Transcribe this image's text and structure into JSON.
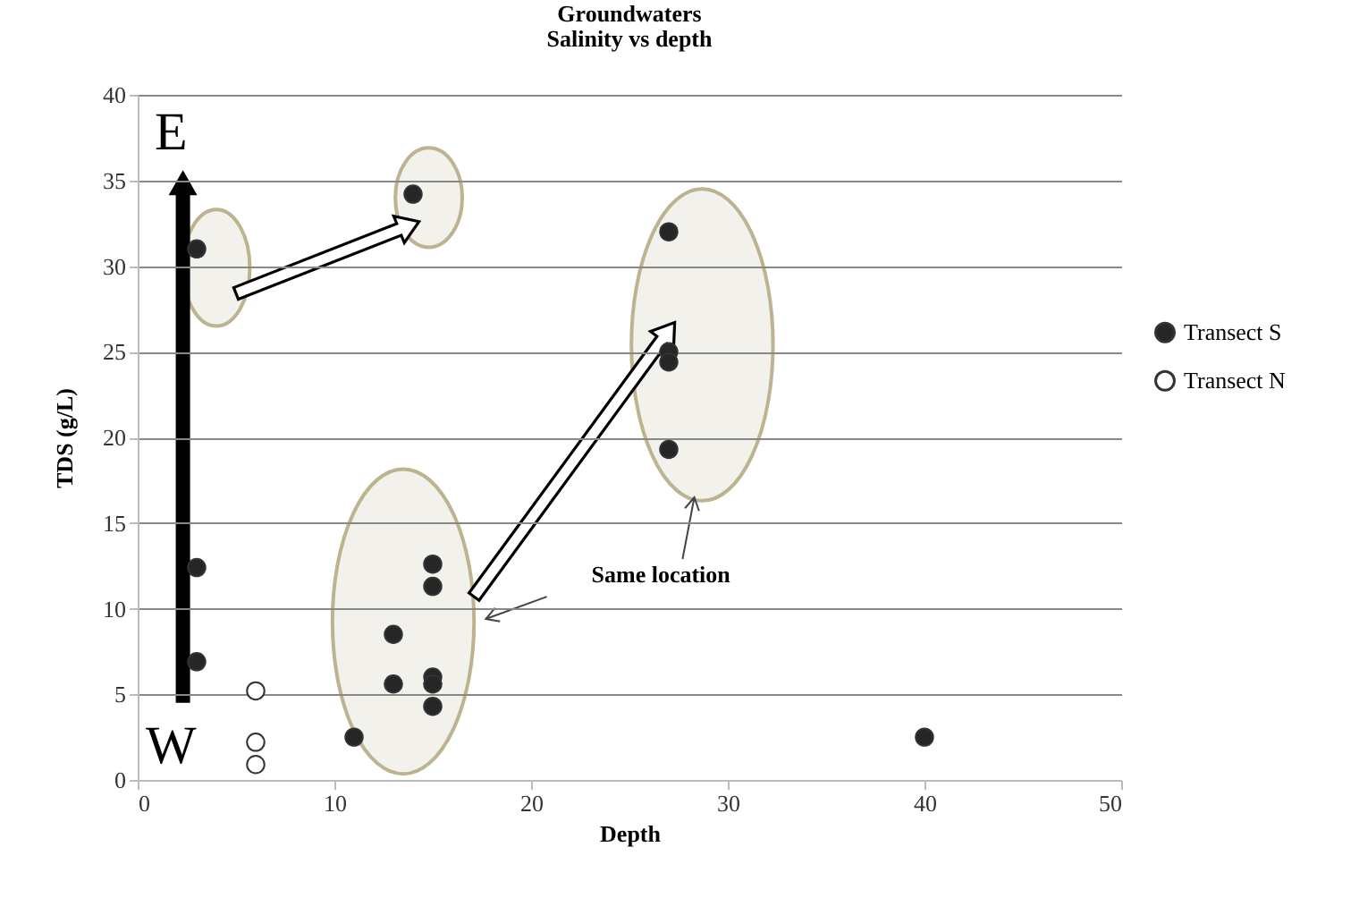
{
  "chart_data": {
    "type": "scatter",
    "title": "Groundwaters",
    "subtitle": "Salinity vs depth",
    "xlabel": "Depth",
    "ylabel": "TDS (g/L)",
    "series": [
      {
        "name": "Transect S",
        "color": "#262626",
        "x": [
          3,
          3,
          3,
          14,
          11,
          13,
          13,
          15,
          15,
          15,
          15,
          15,
          27,
          27,
          27,
          27,
          40
        ],
        "values": [
          31,
          12.4,
          6.9,
          34.2,
          2.5,
          8.5,
          5.6,
          12.6,
          11.3,
          6,
          5.6,
          4.3,
          32,
          25,
          24.4,
          19.3,
          2.5
        ]
      },
      {
        "name": "Transect N",
        "color": "#ffffff",
        "x": [
          6,
          6,
          6
        ],
        "values": [
          5.2,
          2.2,
          0.9
        ]
      }
    ],
    "xlim": [
      0,
      50
    ],
    "xticks": [
      0,
      10,
      20,
      30,
      40,
      50
    ],
    "ylim": [
      0,
      40
    ],
    "yticks": [
      0,
      5,
      10,
      15,
      20,
      25,
      30,
      35,
      40
    ],
    "grid": "y",
    "legend": "right",
    "marker": "circle",
    "annotations": [
      "E",
      "W",
      "Same location"
    ]
  }
}
